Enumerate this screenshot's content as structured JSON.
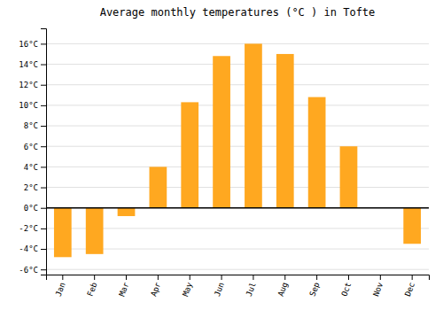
{
  "chart_data": {
    "type": "bar",
    "title": "Average monthly temperatures (°C ) in Tofte",
    "categories": [
      "Jan",
      "Feb",
      "Mar",
      "Apr",
      "May",
      "Jun",
      "Jul",
      "Aug",
      "Sep",
      "Oct",
      "Nov",
      "Dec"
    ],
    "values": [
      -4.8,
      -4.5,
      -0.8,
      4.0,
      10.3,
      14.8,
      16.0,
      15.0,
      10.8,
      6.0,
      0.0,
      -3.5
    ],
    "color": "#FFA820",
    "ylim": [
      -6.5,
      17.5
    ],
    "yticks": [
      {
        "value": -6,
        "label": "-6°C"
      },
      {
        "value": -4,
        "label": "-4°C"
      },
      {
        "value": -2,
        "label": "-2°C"
      },
      {
        "value": 0,
        "label": "0°C"
      },
      {
        "value": 2,
        "label": "2°C"
      },
      {
        "value": 4,
        "label": "4°C"
      },
      {
        "value": 6,
        "label": "6°C"
      },
      {
        "value": 8,
        "label": "8°C"
      },
      {
        "value": 10,
        "label": "10°C"
      },
      {
        "value": 12,
        "label": "12°C"
      },
      {
        "value": 14,
        "label": "14°C"
      },
      {
        "value": 16,
        "label": "16°C"
      }
    ],
    "grid": true
  }
}
